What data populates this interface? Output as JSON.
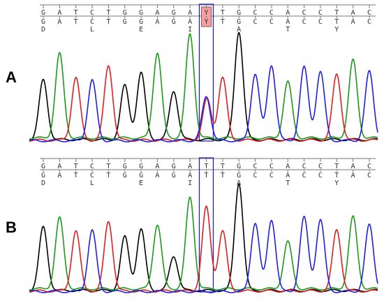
{
  "colors": {
    "A": "#1a9a1a",
    "C": "#1f1fe0",
    "G": "#000000",
    "T": "#e01e1e",
    "highlight_box": "#2222cc",
    "highlight_fill": "#f4a0a0"
  },
  "chart_data": [
    {
      "type": "line",
      "panel": "A",
      "sequence": [
        "G",
        "A",
        "T",
        "C",
        "T",
        "G",
        "G",
        "A",
        "G",
        "A",
        "Y",
        "T",
        "G",
        "C",
        "C",
        "A",
        "C",
        "C",
        "T",
        "A",
        "C"
      ],
      "translation": [
        "D",
        "",
        "",
        "L",
        "",
        "",
        "E",
        "",
        "",
        "I",
        "",
        "",
        "A",
        "",
        "",
        "T",
        "",
        "",
        "Y",
        "",
        ""
      ],
      "highlight_index": 10,
      "highlight_label": "Y",
      "peaks": [
        {
          "base": "G",
          "height": 0.55
        },
        {
          "base": "A",
          "height": 0.78
        },
        {
          "base": "T",
          "height": 0.58
        },
        {
          "base": "C",
          "height": 0.56
        },
        {
          "base": "T",
          "height": 0.69
        },
        {
          "base": "G",
          "height": 0.5
        },
        {
          "base": "G",
          "height": 0.62
        },
        {
          "base": "A",
          "height": 0.79
        },
        {
          "base": "G",
          "height": 0.45
        },
        {
          "base": "A",
          "height": 0.96
        },
        {
          "base": "C",
          "height": 0.41
        },
        {
          "base": "T",
          "height": 0.58
        },
        {
          "base": "G",
          "height": 1.0
        },
        {
          "base": "C",
          "height": 0.62
        },
        {
          "base": "C",
          "height": 0.7
        },
        {
          "base": "A",
          "height": 0.52
        },
        {
          "base": "C",
          "height": 0.68
        },
        {
          "base": "C",
          "height": 0.64
        },
        {
          "base": "T",
          "height": 0.61
        },
        {
          "base": "A",
          "height": 0.72
        },
        {
          "base": "C",
          "height": 0.64
        }
      ],
      "secondary_peaks": [
        {
          "index": 10,
          "base": "T",
          "height": 0.38
        }
      ]
    },
    {
      "type": "line",
      "panel": "B",
      "sequence": [
        "G",
        "A",
        "T",
        "C",
        "T",
        "G",
        "G",
        "A",
        "G",
        "A",
        "T",
        "T",
        "G",
        "C",
        "C",
        "A",
        "C",
        "C",
        "T",
        "A",
        "C"
      ],
      "translation": [
        "D",
        "",
        "",
        "L",
        "",
        "",
        "E",
        "",
        "",
        "I",
        "",
        "",
        "A",
        "",
        "",
        "T",
        "",
        "",
        "Y",
        "",
        ""
      ],
      "highlight_index": 10,
      "peaks": [
        {
          "base": "G",
          "height": 0.59
        },
        {
          "base": "A",
          "height": 0.66
        },
        {
          "base": "T",
          "height": 0.56
        },
        {
          "base": "C",
          "height": 0.57
        },
        {
          "base": "T",
          "height": 0.65
        },
        {
          "base": "G",
          "height": 0.5
        },
        {
          "base": "G",
          "height": 0.57
        },
        {
          "base": "A",
          "height": 0.6
        },
        {
          "base": "G",
          "height": 0.32
        },
        {
          "base": "A",
          "height": 0.85
        },
        {
          "base": "T",
          "height": 0.78
        },
        {
          "base": "T",
          "height": 0.56
        },
        {
          "base": "G",
          "height": 1.0
        },
        {
          "base": "C",
          "height": 0.64
        },
        {
          "base": "C",
          "height": 0.67
        },
        {
          "base": "A",
          "height": 0.44
        },
        {
          "base": "C",
          "height": 0.69
        },
        {
          "base": "C",
          "height": 0.67
        },
        {
          "base": "T",
          "height": 0.57
        },
        {
          "base": "A",
          "height": 0.67
        },
        {
          "base": "C",
          "height": 0.62
        }
      ],
      "secondary_peaks": []
    }
  ]
}
